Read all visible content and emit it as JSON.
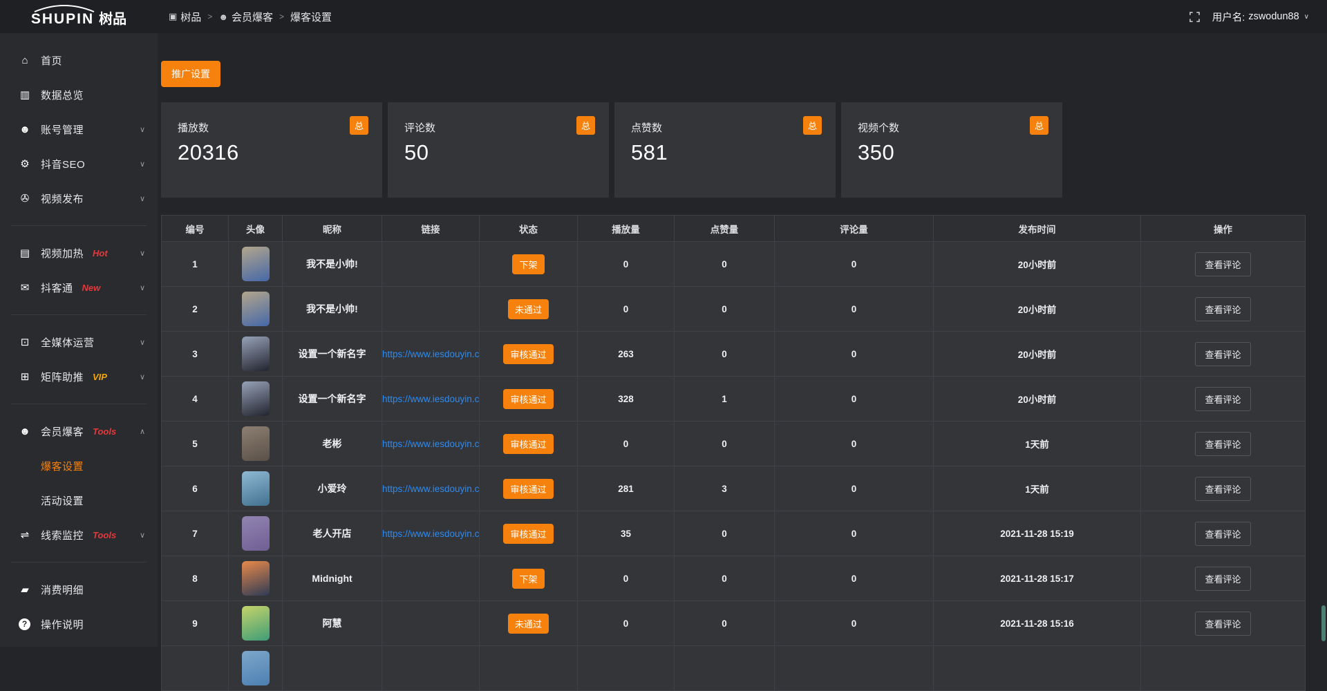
{
  "header": {
    "logo_text": "SHUPIN",
    "logo_suffix": "树品",
    "breadcrumb": [
      {
        "icon": "app-icon",
        "label": "树品"
      },
      {
        "icon": "member-icon",
        "label": "会员爆客"
      },
      {
        "label": "爆客设置"
      }
    ],
    "breadcrumb_separator": ">",
    "username_label": "用户名:",
    "username": "zswodun88"
  },
  "sidebar": {
    "items": [
      {
        "key": "home",
        "label": "首页",
        "icon": "home-icon"
      },
      {
        "key": "data-overview",
        "label": "数据总览",
        "icon": "chart-icon"
      },
      {
        "key": "account-manage",
        "label": "账号管理",
        "icon": "user-icon",
        "chevron": "down"
      },
      {
        "key": "douyin-seo",
        "label": "抖音SEO",
        "icon": "gear-icon",
        "chevron": "down"
      },
      {
        "key": "video-publish",
        "label": "视频发布",
        "icon": "video-icon",
        "chevron": "down"
      },
      {
        "divider": true
      },
      {
        "key": "video-heat",
        "label": "视频加热",
        "icon": "screen-icon",
        "badge": "Hot",
        "badge_color": "hot",
        "chevron": "down"
      },
      {
        "key": "douketong",
        "label": "抖客通",
        "icon": "chat-icon",
        "badge": "New",
        "badge_color": "hot",
        "chevron": "down"
      },
      {
        "divider": true
      },
      {
        "key": "media-operation",
        "label": "全媒体运营",
        "icon": "monitor-icon",
        "chevron": "down"
      },
      {
        "key": "matrix-boost",
        "label": "矩阵助推",
        "icon": "grid-icon",
        "badge": "VIP",
        "badge_color": "vip",
        "chevron": "down"
      },
      {
        "divider": true
      },
      {
        "key": "member-baoke",
        "label": "会员爆客",
        "icon": "member-icon",
        "badge": "Tools",
        "badge_color": "hot",
        "chevron": "up",
        "children": [
          {
            "label": "爆客设置",
            "active": true
          },
          {
            "label": "活动设置",
            "active": false
          }
        ]
      },
      {
        "key": "clue-monitor",
        "label": "线索监控",
        "icon": "sliders-icon",
        "badge": "Tools",
        "badge_color": "hot",
        "chevron": "down"
      },
      {
        "divider": true
      },
      {
        "key": "consume-detail",
        "label": "消费明细",
        "icon": "wallet-icon"
      },
      {
        "key": "operation-help",
        "label": "操作说明",
        "icon": "help-icon"
      }
    ]
  },
  "toolbar": {
    "promo_button": "推广设置"
  },
  "stats": [
    {
      "label": "播放数",
      "value": "20316",
      "badge": "总"
    },
    {
      "label": "评论数",
      "value": "50",
      "badge": "总"
    },
    {
      "label": "点赞数",
      "value": "581",
      "badge": "总"
    },
    {
      "label": "视频个数",
      "value": "350",
      "badge": "总"
    }
  ],
  "table": {
    "columns": [
      "编号",
      "头像",
      "昵称",
      "链接",
      "状态",
      "播放量",
      "点赞量",
      "评论量",
      "发布时间",
      "操作"
    ],
    "action_label": "查看评论",
    "rows": [
      {
        "id": "1",
        "nickname": "我不是小帅!",
        "link": "",
        "status": "下架",
        "plays": "0",
        "likes": "0",
        "comments": "0",
        "time": "20小时前",
        "avatar": [
          "#b3a58c",
          "#4568a8"
        ]
      },
      {
        "id": "2",
        "nickname": "我不是小帅!",
        "link": "",
        "status": "未通过",
        "plays": "0",
        "likes": "0",
        "comments": "0",
        "time": "20小时前",
        "avatar": [
          "#b3a58c",
          "#4568a8"
        ]
      },
      {
        "id": "3",
        "nickname": "设置一个新名字",
        "link": "https://www.iesdouyin.c",
        "status": "审核通过",
        "plays": "263",
        "likes": "0",
        "comments": "0",
        "time": "20小时前",
        "avatar": [
          "#97a2b8",
          "#22242e"
        ]
      },
      {
        "id": "4",
        "nickname": "设置一个新名字",
        "link": "https://www.iesdouyin.c",
        "status": "审核通过",
        "plays": "328",
        "likes": "1",
        "comments": "0",
        "time": "20小时前",
        "avatar": [
          "#97a2b8",
          "#22242e"
        ]
      },
      {
        "id": "5",
        "nickname": "老彬",
        "link": "https://www.iesdouyin.c",
        "status": "审核通过",
        "plays": "0",
        "likes": "0",
        "comments": "0",
        "time": "1天前",
        "avatar": [
          "#8d7f72",
          "#5a5048"
        ]
      },
      {
        "id": "6",
        "nickname": "小爱玲",
        "link": "https://www.iesdouyin.c",
        "status": "审核通过",
        "plays": "281",
        "likes": "3",
        "comments": "0",
        "time": "1天前",
        "avatar": [
          "#8fb9d4",
          "#41718f"
        ]
      },
      {
        "id": "7",
        "nickname": "老人开店",
        "link": "https://www.iesdouyin.c",
        "status": "审核通过",
        "plays": "35",
        "likes": "0",
        "comments": "0",
        "time": "2021-11-28 15:19",
        "avatar": [
          "#9184b1",
          "#6f5f94"
        ]
      },
      {
        "id": "8",
        "nickname": "Midnight",
        "link": "",
        "status": "下架",
        "plays": "0",
        "likes": "0",
        "comments": "0",
        "time": "2021-11-28 15:17",
        "avatar": [
          "#e8894a",
          "#2f3b55"
        ]
      },
      {
        "id": "9",
        "nickname": "阿慧",
        "link": "",
        "status": "未通过",
        "plays": "0",
        "likes": "0",
        "comments": "0",
        "time": "2021-11-28 15:16",
        "avatar": [
          "#c5d36a",
          "#3f9d77"
        ]
      },
      {
        "id": "",
        "nickname": "",
        "link": "",
        "status": "",
        "plays": "",
        "likes": "",
        "comments": "",
        "time": "",
        "avatar": [
          "#7da7cc",
          "#4c7fb0"
        ],
        "partial": true
      }
    ]
  },
  "colors": {
    "accent": "#f6820d",
    "link": "#2e8bf0",
    "hot": "#e4393c",
    "vip": "#f5a50a"
  }
}
